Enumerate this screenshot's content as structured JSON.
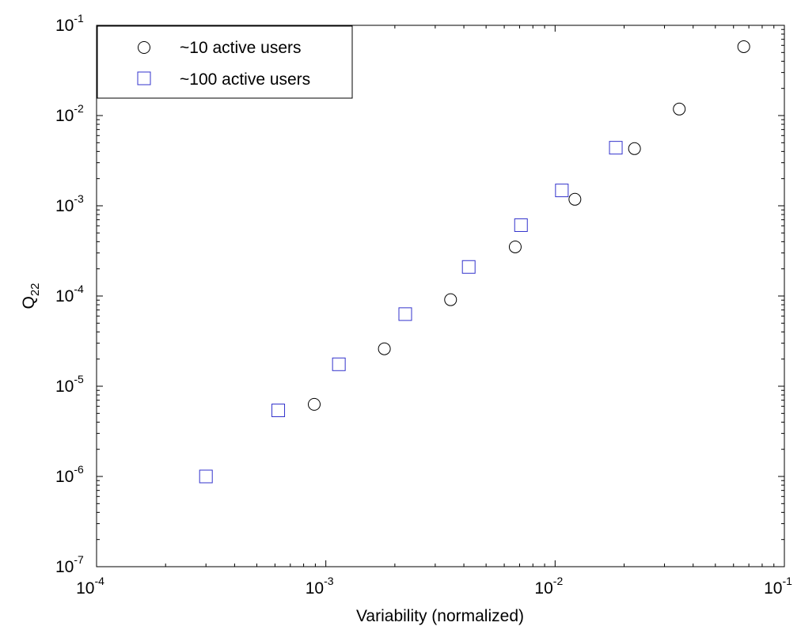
{
  "chart_data": {
    "type": "scatter",
    "title": "",
    "xlabel": "Variability (normalized)",
    "ylabel_main": "Q",
    "ylabel_sub": "22",
    "x_scale": "log",
    "y_scale": "log",
    "xlim": [
      0.0001,
      0.1
    ],
    "ylim": [
      1e-07,
      0.1
    ],
    "grid": false,
    "legend_position": "top-left",
    "x_ticks": [
      {
        "value": 0.0001,
        "base": "10",
        "exp": "-4"
      },
      {
        "value": 0.001,
        "base": "10",
        "exp": "-3"
      },
      {
        "value": 0.01,
        "base": "10",
        "exp": "-2"
      },
      {
        "value": 0.1,
        "base": "10",
        "exp": "-1"
      }
    ],
    "y_ticks": [
      {
        "value": 1e-07,
        "base": "10",
        "exp": "-7"
      },
      {
        "value": 1e-06,
        "base": "10",
        "exp": "-6"
      },
      {
        "value": 1e-05,
        "base": "10",
        "exp": "-5"
      },
      {
        "value": 0.0001,
        "base": "10",
        "exp": "-4"
      },
      {
        "value": 0.001,
        "base": "10",
        "exp": "-3"
      },
      {
        "value": 0.01,
        "base": "10",
        "exp": "-2"
      },
      {
        "value": 0.1,
        "base": "10",
        "exp": "-1"
      }
    ],
    "series": [
      {
        "name": "~10 active users",
        "marker": "circle",
        "color": "#000000",
        "points": [
          {
            "x": 0.00089,
            "y": 6.3e-06
          },
          {
            "x": 0.0018,
            "y": 2.6e-05
          },
          {
            "x": 0.0035,
            "y": 9.1e-05
          },
          {
            "x": 0.0067,
            "y": 0.00035
          },
          {
            "x": 0.0122,
            "y": 0.00118
          },
          {
            "x": 0.0222,
            "y": 0.0043
          },
          {
            "x": 0.0348,
            "y": 0.0118
          },
          {
            "x": 0.0665,
            "y": 0.058
          }
        ]
      },
      {
        "name": "~100 active users",
        "marker": "square",
        "color": "#3333cc",
        "points": [
          {
            "x": 0.0003,
            "y": 1e-06
          },
          {
            "x": 0.00062,
            "y": 5.4e-06
          },
          {
            "x": 0.00114,
            "y": 1.75e-05
          },
          {
            "x": 0.00222,
            "y": 6.3e-05
          },
          {
            "x": 0.0042,
            "y": 0.00021
          },
          {
            "x": 0.0071,
            "y": 0.00061
          },
          {
            "x": 0.0107,
            "y": 0.00148
          },
          {
            "x": 0.0184,
            "y": 0.0044
          }
        ]
      }
    ]
  }
}
